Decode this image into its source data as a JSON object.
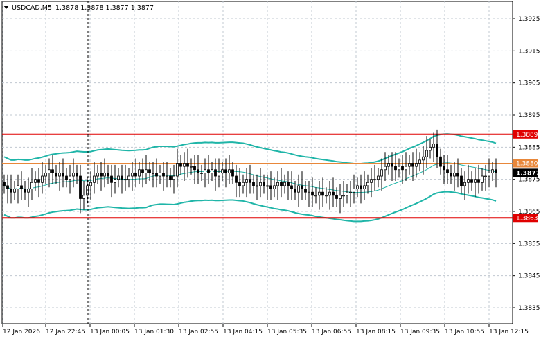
{
  "header": {
    "symbol_label": "USDCAD,M5",
    "ohlc_text": "1.3878 1.3878 1.3877 1.3877",
    "menu_icon": "triangle-down-icon"
  },
  "colors": {
    "background": "#ffffff",
    "grid": "#c0c8d0",
    "candle": "#000000",
    "bands": "#1fb5a8",
    "level_line": "#e00000",
    "mid_level": "#e8873a",
    "price_tag_bg": "#000000"
  },
  "price_axis": {
    "ticks": [
      "1.3925",
      "1.3915",
      "1.3905",
      "1.3895",
      "1.3885",
      "1.3875",
      "1.3865",
      "1.3855",
      "1.3845",
      "1.3835"
    ]
  },
  "time_axis": {
    "ticks": [
      "12 Jan 2026",
      "12 Jan 22:45",
      "13 Jan 00:05",
      "13 Jan 01:30",
      "13 Jan 02:55",
      "13 Jan 04:15",
      "13 Jan 05:35",
      "13 Jan 06:55",
      "13 Jan 08:15",
      "13 Jan 09:35",
      "13 Jan 10:55",
      "13 Jan 12:15"
    ]
  },
  "levels": [
    {
      "label": "1.3889",
      "value": 1.3889,
      "style": "resistance"
    },
    {
      "label": "1.3880",
      "value": 1.388,
      "style": "pivot"
    },
    {
      "label": "1.3863",
      "value": 1.3863,
      "style": "support"
    }
  ],
  "current_price": {
    "label": "1.3877",
    "value": 1.3877
  },
  "chart_data": {
    "type": "candlestick",
    "symbol": "USDCAD",
    "timeframe": "M5",
    "ylim": [
      1.383,
      1.393
    ],
    "close_series": [
      1.3873,
      1.3872,
      1.3871,
      1.3872,
      1.3873,
      1.3872,
      1.3871,
      1.3872,
      1.3874,
      1.3875,
      1.3874,
      1.3876,
      1.3877,
      1.3878,
      1.3877,
      1.3876,
      1.3877,
      1.3876,
      1.3875,
      1.3876,
      1.3877,
      1.3876,
      1.3869,
      1.387,
      1.3873,
      1.3874,
      1.3876,
      1.3877,
      1.3876,
      1.3877,
      1.3876,
      1.3874,
      1.3875,
      1.3876,
      1.3875,
      1.3875,
      1.3876,
      1.3877,
      1.3876,
      1.3878,
      1.3877,
      1.3878,
      1.3877,
      1.3877,
      1.3876,
      1.3877,
      1.3876,
      1.3876,
      1.3875,
      1.3876,
      1.388,
      1.3879,
      1.388,
      1.3879,
      1.3879,
      1.3878,
      1.3877,
      1.3877,
      1.3878,
      1.3877,
      1.3878,
      1.3876,
      1.3877,
      1.3878,
      1.3877,
      1.3878,
      1.3876,
      1.3874,
      1.3873,
      1.3874,
      1.3875,
      1.3874,
      1.3873,
      1.3873,
      1.3874,
      1.3873,
      1.3873,
      1.3872,
      1.3873,
      1.3874,
      1.3873,
      1.3874,
      1.3873,
      1.3872,
      1.3871,
      1.3873,
      1.3872,
      1.3871,
      1.3871,
      1.387,
      1.387,
      1.3871,
      1.387,
      1.387,
      1.3871,
      1.387,
      1.3869,
      1.387,
      1.387,
      1.3871,
      1.3871,
      1.3872,
      1.3873,
      1.3872,
      1.3873,
      1.3874,
      1.3875,
      1.3875,
      1.3876,
      1.3878,
      1.3879,
      1.388,
      1.3879,
      1.3878,
      1.3879,
      1.3878,
      1.3879,
      1.388,
      1.3879,
      1.388,
      1.3881,
      1.3882,
      1.3884,
      1.3885,
      1.3886,
      1.3882,
      1.3879,
      1.3878,
      1.3877,
      1.3876,
      1.3877,
      1.3876,
      1.3873,
      1.3874,
      1.3875,
      1.3874,
      1.3875,
      1.3874,
      1.3876,
      1.3876,
      1.3877,
      1.3878,
      1.3877
    ]
  }
}
